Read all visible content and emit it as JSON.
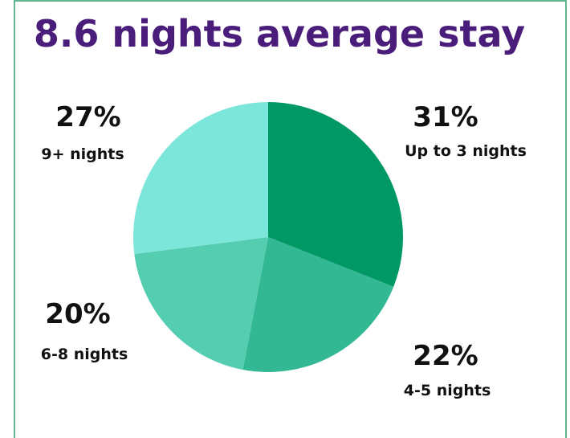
{
  "chart_data": {
    "type": "pie",
    "title": "8.6 nights average stay",
    "categories": [
      "Up to 3 nights",
      "4-5 nights",
      "6-8 nights",
      "9+ nights"
    ],
    "values": [
      31,
      22,
      20,
      27
    ],
    "value_labels": [
      "31%",
      "22%",
      "20%",
      "27%"
    ],
    "colors": [
      "#009966",
      "#33b894",
      "#55cdb0",
      "#7de6da"
    ]
  }
}
